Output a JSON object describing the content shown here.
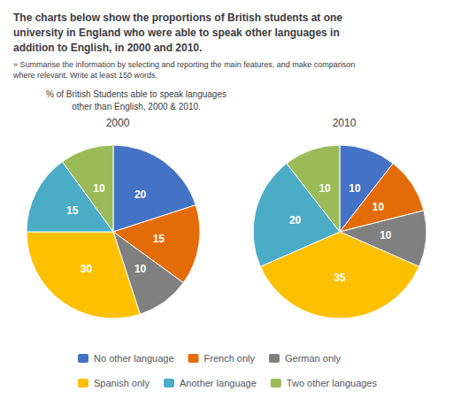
{
  "title": [
    "The charts below show the proportions of British students at one",
    "university in England who were able to speak other languages in",
    "addition to English, in 2000 and 2010."
  ],
  "subtitle": [
    "» Summarise the information by selecting and reporting the main features, and make comparison",
    "where relevant. Write at least 150 words."
  ],
  "annotations": [
    "% of British Students able to speak languages",
    "other than English, 2000 & 2010."
  ],
  "chart_data": [
    {
      "type": "pie",
      "title": "2000",
      "categories": [
        "No other language",
        "French only",
        "German only",
        "Spanish only",
        "Another language",
        "Two other languages"
      ],
      "values": [
        20,
        15,
        10,
        30,
        15,
        10
      ],
      "colors": [
        "#4472C4",
        "#E36C09",
        "#808080",
        "#FFC000",
        "#4BACC6",
        "#9BBB59"
      ],
      "data_labels": true,
      "legend": "bottom"
    },
    {
      "type": "pie",
      "title": "2010",
      "categories": [
        "No other language",
        "French only",
        "German only",
        "Spanish only",
        "Another language",
        "Two other languages"
      ],
      "values": [
        10,
        10,
        10,
        35,
        20,
        10
      ],
      "colors": [
        "#4472C4",
        "#E36C09",
        "#808080",
        "#FFC000",
        "#4BACC6",
        "#9BBB59"
      ],
      "data_labels": true,
      "legend": "bottom"
    }
  ]
}
